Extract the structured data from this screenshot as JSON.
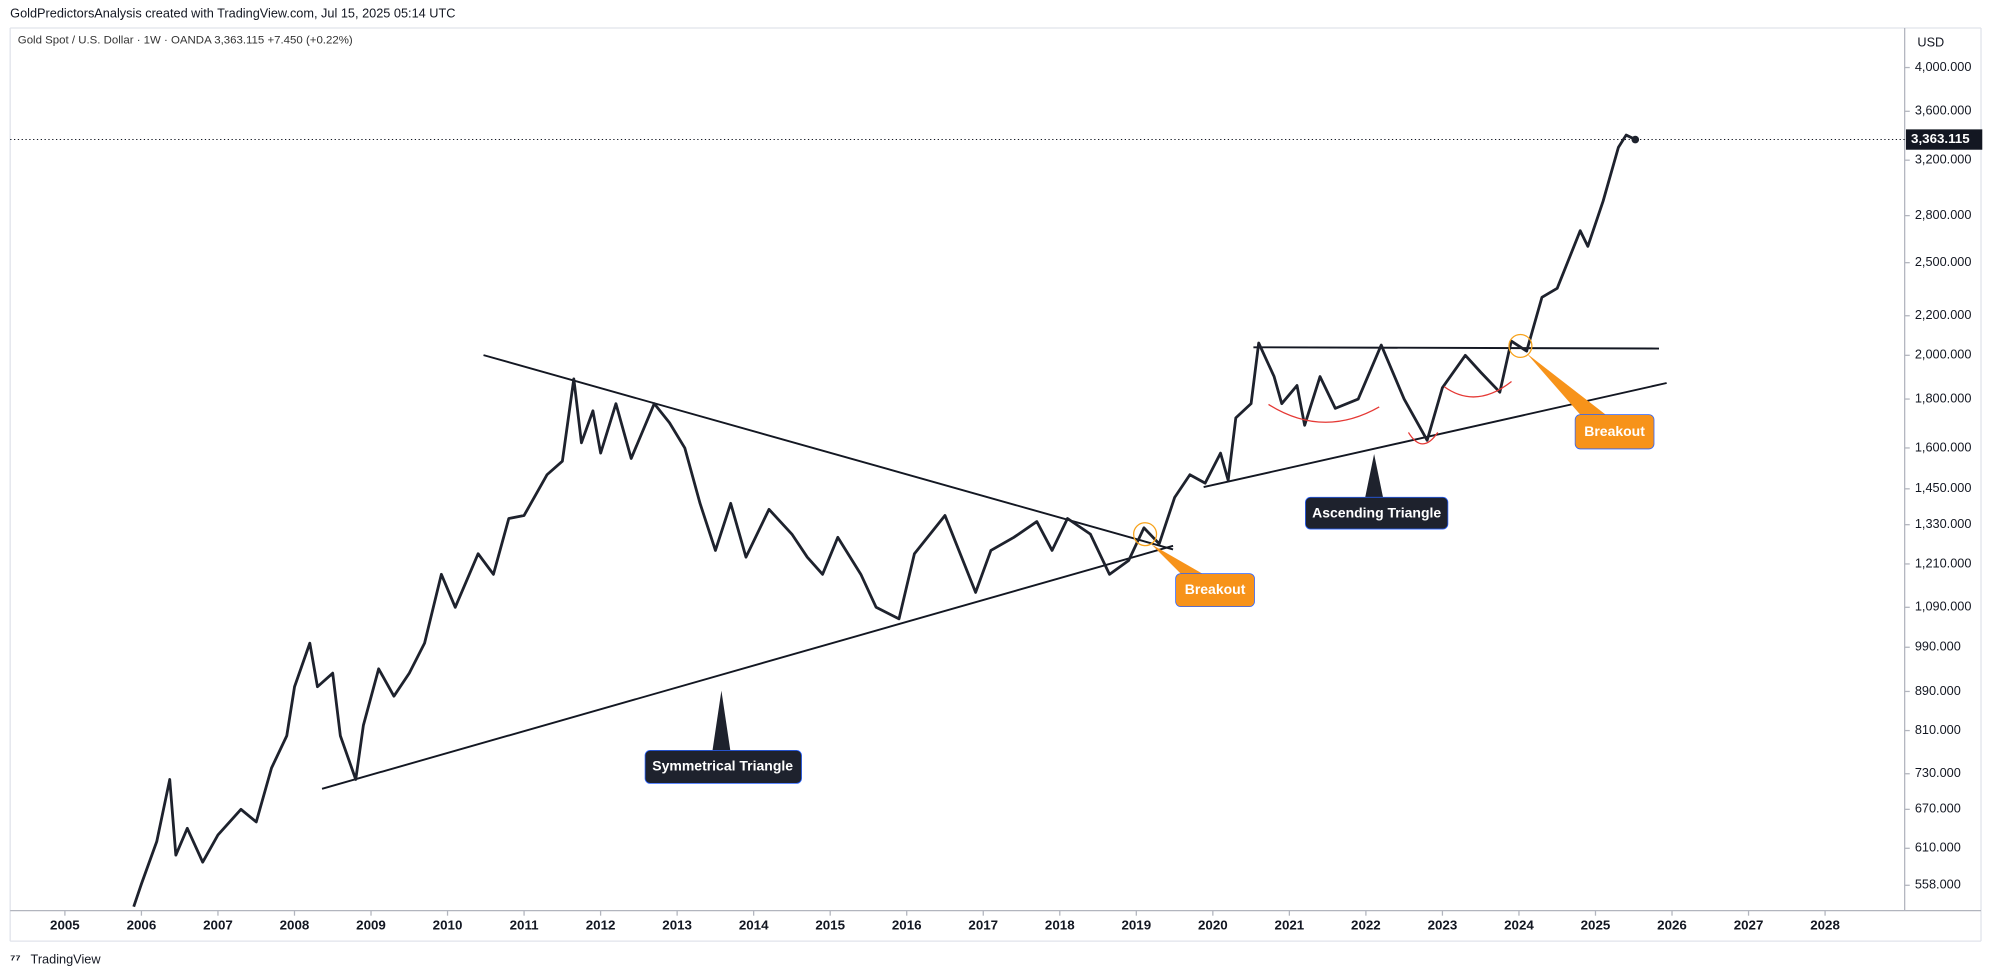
{
  "chart_data": {
    "type": "line",
    "title": "GoldPredictorsAnalysis created with TradingView.com, Jul 15, 2025 05:14 UTC",
    "subtitle": "Gold Spot / U.S. Dollar · 1W · OANDA  3,363.115  +7.450 (+0.22%)",
    "y_axis_label": "USD",
    "brand": "TradingView",
    "log_scale": true,
    "xlim": [
      2004.285,
      2029.04
    ],
    "xticks": [
      2005,
      2006,
      2007,
      2008,
      2009,
      2010,
      2011,
      2012,
      2013,
      2014,
      2015,
      2016,
      2017,
      2018,
      2019,
      2020,
      2021,
      2022,
      2023,
      2024,
      2025,
      2026,
      2027,
      2028
    ],
    "ylim": [
      525,
      4400
    ],
    "yticks": [
      {
        "value": 4000,
        "label": "4,000.000"
      },
      {
        "value": 3600,
        "label": "3,600.000"
      },
      {
        "value": 3200,
        "label": "3,200.000"
      },
      {
        "value": 2800,
        "label": "2,800.000"
      },
      {
        "value": 2500,
        "label": "2,500.000"
      },
      {
        "value": 2200,
        "label": "2,200.000"
      },
      {
        "value": 2000,
        "label": "2,000.000"
      },
      {
        "value": 1800,
        "label": "1,800.000"
      },
      {
        "value": 1600,
        "label": "1,600.000"
      },
      {
        "value": 1450,
        "label": "1,450.000"
      },
      {
        "value": 1330,
        "label": "1,330.000"
      },
      {
        "value": 1210,
        "label": "1,210.000"
      },
      {
        "value": 1090,
        "label": "1,090.000"
      },
      {
        "value": 990,
        "label": "990.000"
      },
      {
        "value": 890,
        "label": "890.000"
      },
      {
        "value": 810,
        "label": "810.000"
      },
      {
        "value": 730,
        "label": "730.000"
      },
      {
        "value": 670,
        "label": "670.000"
      },
      {
        "value": 610,
        "label": "610.000"
      },
      {
        "value": 558,
        "label": "558.000"
      }
    ],
    "series": [
      {
        "name": "Gold Spot / U.S. Dollar",
        "color": "#1e222d",
        "x": [
          2005.9,
          2006.0,
          2006.2,
          2006.37,
          2006.45,
          2006.6,
          2006.8,
          2007.0,
          2007.3,
          2007.5,
          2007.7,
          2007.9,
          2008.0,
          2008.2,
          2008.3,
          2008.5,
          2008.6,
          2008.8,
          2008.9,
          2009.1,
          2009.3,
          2009.5,
          2009.7,
          2009.92,
          2010.1,
          2010.4,
          2010.6,
          2010.8,
          2011.0,
          2011.3,
          2011.5,
          2011.65,
          2011.75,
          2011.9,
          2012.0,
          2012.2,
          2012.4,
          2012.7,
          2012.9,
          2013.1,
          2013.3,
          2013.5,
          2013.7,
          2013.9,
          2014.2,
          2014.5,
          2014.7,
          2014.9,
          2015.1,
          2015.4,
          2015.6,
          2015.9,
          2016.1,
          2016.5,
          2016.9,
          2017.1,
          2017.4,
          2017.7,
          2017.9,
          2018.1,
          2018.4,
          2018.65,
          2018.9,
          2019.1,
          2019.3,
          2019.5,
          2019.7,
          2019.9,
          2020.1,
          2020.2,
          2020.3,
          2020.5,
          2020.6,
          2020.8,
          2020.9,
          2021.1,
          2021.2,
          2021.4,
          2021.6,
          2021.9,
          2022.2,
          2022.5,
          2022.8,
          2023.0,
          2023.3,
          2023.5,
          2023.75,
          2023.9,
          2024.1,
          2024.3,
          2024.5,
          2024.8,
          2024.9,
          2025.1,
          2025.3,
          2025.4,
          2025.52
        ],
        "values": [
          530,
          560,
          620,
          720,
          600,
          640,
          590,
          630,
          670,
          650,
          740,
          800,
          900,
          1000,
          900,
          930,
          800,
          720,
          820,
          940,
          880,
          930,
          1000,
          1180,
          1090,
          1240,
          1180,
          1350,
          1360,
          1500,
          1550,
          1890,
          1620,
          1750,
          1580,
          1780,
          1560,
          1780,
          1700,
          1600,
          1400,
          1250,
          1400,
          1230,
          1380,
          1300,
          1230,
          1180,
          1290,
          1180,
          1090,
          1060,
          1240,
          1360,
          1130,
          1250,
          1290,
          1340,
          1250,
          1350,
          1300,
          1180,
          1220,
          1320,
          1270,
          1420,
          1500,
          1470,
          1580,
          1480,
          1720,
          1780,
          2060,
          1900,
          1780,
          1860,
          1690,
          1900,
          1760,
          1800,
          2050,
          1800,
          1630,
          1850,
          2000,
          1920,
          1830,
          2070,
          2020,
          2300,
          2350,
          2700,
          2600,
          2900,
          3300,
          3400,
          3363.115
        ]
      }
    ],
    "last_price_label": "3,363.115",
    "trend_lines": [
      {
        "x": [
          2010.47,
          2019.48
        ],
        "y": [
          2001,
          1253
        ]
      },
      {
        "x": [
          2008.36,
          2019.48
        ],
        "y": [
          704,
          1264
        ]
      },
      {
        "x": [
          2020.53,
          2025.83
        ],
        "y": [
          2039,
          2033
        ]
      },
      {
        "x": [
          2019.88,
          2025.93
        ],
        "y": [
          1456,
          1871
        ]
      }
    ],
    "annotations": [
      "Symmetrical Triangle",
      "Ascending Triangle",
      "Breakout",
      "Breakout"
    ]
  }
}
